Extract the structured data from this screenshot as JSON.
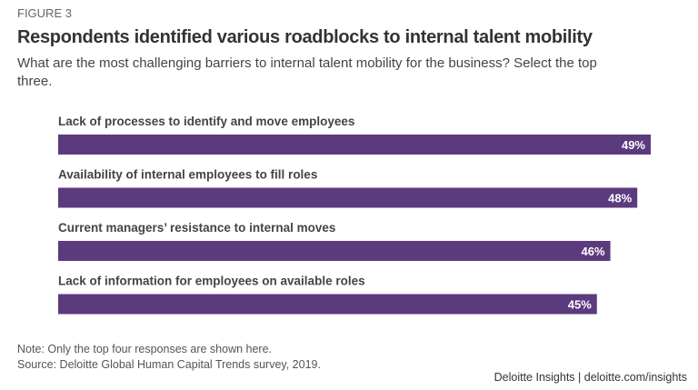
{
  "figure_label": "FIGURE 3",
  "chart_data": {
    "type": "bar",
    "orientation": "horizontal",
    "title": "Respondents identified various roadblocks to internal talent mobility",
    "subtitle": "What are the most challenging barriers to internal talent mobility for the business? Select the top three.",
    "categories": [
      "Lack of processes to identify and move employees",
      "Availability of internal employees to fill roles",
      "Current managers’ resistance to internal moves",
      "Lack of information for employees on available roles"
    ],
    "values": [
      49,
      48,
      46,
      45
    ],
    "data_labels": [
      "49%",
      "48%",
      "46%",
      "45%"
    ],
    "unit": "%",
    "bar_color": "#5c3a7e",
    "grid": false
  },
  "note": "Note: Only the top four responses are shown here.",
  "source": "Source: Deloitte Global Human Capital Trends survey, 2019.",
  "brand": "Deloitte Insights | deloitte.com/insights"
}
